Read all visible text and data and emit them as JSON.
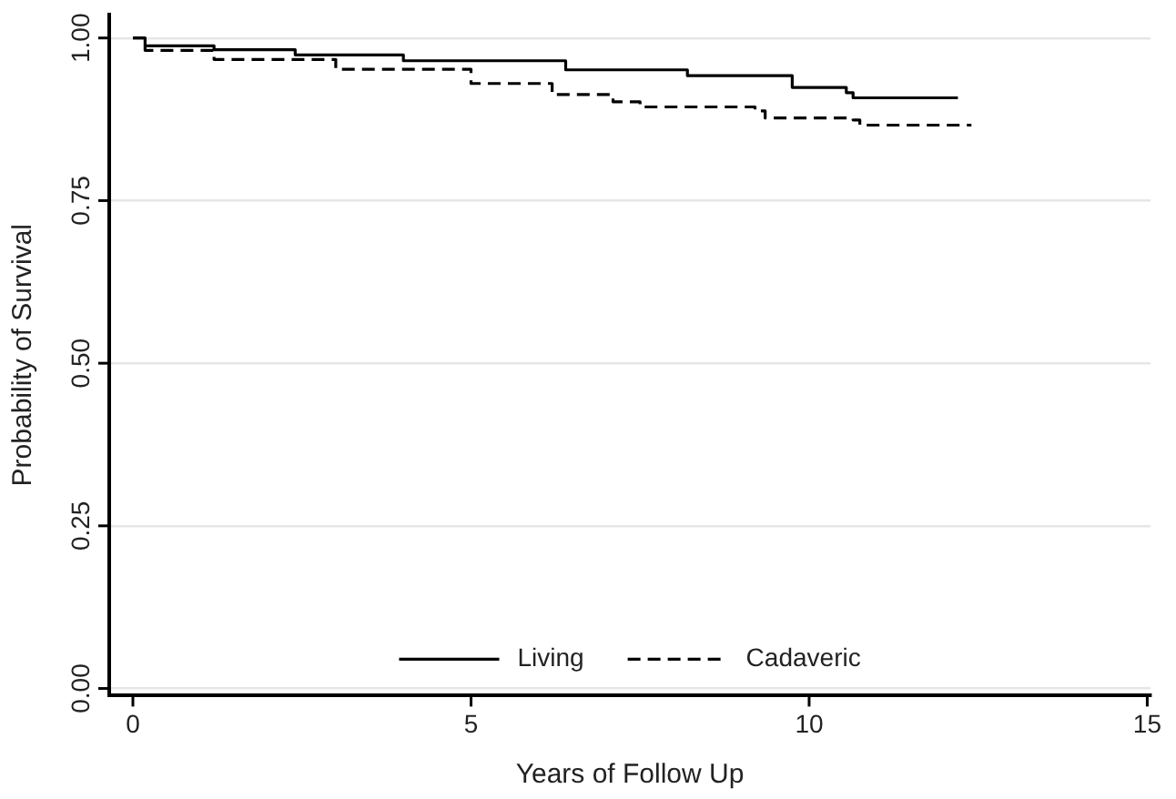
{
  "chart_data": {
    "type": "step",
    "xlabel": "Years of Follow Up",
    "ylabel": "Probability of Survival",
    "xlim": [
      -0.35,
      15.05
    ],
    "ylim": [
      -0.011,
      1.036
    ],
    "xticks": [
      0,
      5,
      10,
      15
    ],
    "yticks": [
      {
        "value": 0,
        "label": "0.00"
      },
      {
        "value": 0.25,
        "label": "0.25"
      },
      {
        "value": 0.5,
        "label": "0.50"
      },
      {
        "value": 0.75,
        "label": "0.75"
      },
      {
        "value": 1,
        "label": "1.00"
      }
    ],
    "grid": "y",
    "legend": "bottom",
    "marker": "none",
    "series": [
      {
        "name": "Living",
        "color": "#000000",
        "line_style": "solid",
        "x": [
          0,
          0.18,
          1.2,
          2.4,
          4,
          6.4,
          8.2,
          9.75,
          10.55,
          10.65,
          12.2
        ],
        "values": [
          1,
          0.988,
          0.982,
          0.974,
          0.965,
          0.951,
          0.942,
          0.924,
          0.916,
          0.908,
          0.908
        ]
      },
      {
        "name": "Cadaveric",
        "color": "#000000",
        "line_style": "dashed",
        "x": [
          0,
          0.18,
          1.2,
          3,
          5,
          6.2,
          7.1,
          7.5,
          9.2,
          9.35,
          10.65,
          10.75,
          12.4
        ],
        "values": [
          1,
          0.981,
          0.967,
          0.952,
          0.93,
          0.913,
          0.902,
          0.894,
          0.888,
          0.877,
          0.874,
          0.866,
          0.866
        ]
      }
    ]
  }
}
